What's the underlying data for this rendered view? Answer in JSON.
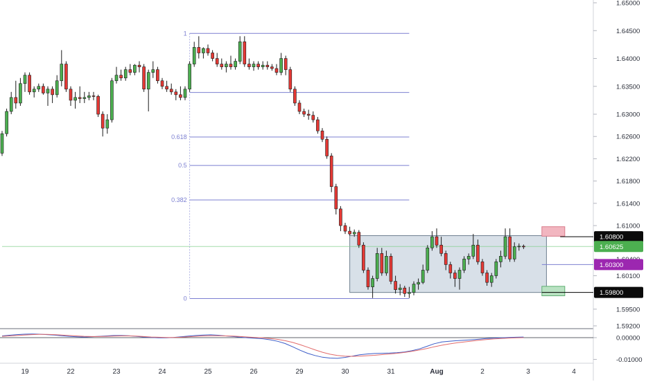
{
  "chart_data": {
    "type": "candlestick",
    "price_axis": {
      "ticks": [
        "1.65000",
        "1.64500",
        "1.64000",
        "1.63500",
        "1.63000",
        "1.62600",
        "1.62200",
        "1.61800",
        "1.61400",
        "1.61000",
        "1.60400",
        "1.60100",
        "1.59500",
        "1.59200"
      ],
      "tick_values": [
        1.65,
        1.645,
        1.64,
        1.635,
        1.63,
        1.626,
        1.622,
        1.618,
        1.614,
        1.61,
        1.604,
        1.601,
        1.595,
        1.592
      ],
      "ylim": [
        1.5915,
        1.6505
      ]
    },
    "date_axis": {
      "labels": [
        "19",
        "22",
        "23",
        "24",
        "25",
        "26",
        "29",
        "30",
        "31",
        "Aug",
        "2",
        "3",
        "4"
      ],
      "label_bars": [
        5,
        15,
        25,
        35,
        45,
        55,
        65,
        75,
        85,
        95,
        105,
        115,
        125
      ]
    },
    "price_labels": [
      {
        "text": "1.60800",
        "value": 1.608,
        "style": "dark"
      },
      {
        "text": "1.60625",
        "value": 1.60625,
        "style": "green"
      },
      {
        "text": "1.60300",
        "value": 1.603,
        "style": "purple"
      },
      {
        "text": "1.59800",
        "value": 1.598,
        "style": "dark"
      }
    ],
    "fibonacci": {
      "levels": [
        {
          "label": "1",
          "value": 1.6445
        },
        {
          "label": "",
          "value": 1.6339
        },
        {
          "label": "0.618",
          "value": 1.6259
        },
        {
          "label": "0.5",
          "value": 1.6208
        },
        {
          "label": "0.382",
          "value": 1.6146
        },
        {
          "label": "0",
          "value": 1.5969
        }
      ],
      "start_bar": 41,
      "end_bar": 89
    },
    "range_box": {
      "top": 1.6082,
      "bottom": 1.598,
      "start_bar": 76,
      "end_bar": 119
    },
    "stop_box": {
      "top": 1.6098,
      "bottom": 1.6081,
      "start_bar": 118,
      "end_bar": 123
    },
    "target_box": {
      "top": 1.5991,
      "bottom": 1.5974,
      "start_bar": 118,
      "end_bar": 123
    },
    "horizontal_lines": [
      {
        "value": 1.608,
        "from_bar": 122,
        "color": "#000000"
      },
      {
        "value": 1.603,
        "from_bar": 118,
        "color": "#7b7fd1"
      },
      {
        "value": 1.598,
        "from_bar": 118,
        "color": "#000000"
      },
      {
        "value": 1.60625,
        "from_bar": 0,
        "color": "#7ed08a"
      }
    ],
    "candles_ohlc": [
      [
        1.623,
        1.627,
        1.6225,
        1.6265
      ],
      [
        1.6265,
        1.631,
        1.626,
        1.6305
      ],
      [
        1.6305,
        1.634,
        1.63,
        1.633
      ],
      [
        1.633,
        1.636,
        1.631,
        1.632
      ],
      [
        1.632,
        1.6365,
        1.6315,
        1.6355
      ],
      [
        1.6355,
        1.6375,
        1.634,
        1.637
      ],
      [
        1.637,
        1.6375,
        1.6335,
        1.634
      ],
      [
        1.634,
        1.635,
        1.633,
        1.6345
      ],
      [
        1.6345,
        1.6355,
        1.634,
        1.635
      ],
      [
        1.635,
        1.6355,
        1.6335,
        1.6338
      ],
      [
        1.6338,
        1.635,
        1.6315,
        1.6345
      ],
      [
        1.6345,
        1.635,
        1.632,
        1.6335
      ],
      [
        1.6335,
        1.637,
        1.633,
        1.636
      ],
      [
        1.636,
        1.6415,
        1.635,
        1.639
      ],
      [
        1.639,
        1.6395,
        1.634,
        1.6345
      ],
      [
        1.6345,
        1.635,
        1.6315,
        1.6325
      ],
      [
        1.6325,
        1.634,
        1.631,
        1.633
      ],
      [
        1.633,
        1.635,
        1.632,
        1.6328
      ],
      [
        1.6328,
        1.634,
        1.632,
        1.633
      ],
      [
        1.633,
        1.634,
        1.6325,
        1.6333
      ],
      [
        1.6333,
        1.634,
        1.6325,
        1.6332
      ],
      [
        1.6332,
        1.6335,
        1.6295,
        1.63
      ],
      [
        1.63,
        1.6305,
        1.626,
        1.6275
      ],
      [
        1.6275,
        1.63,
        1.6265,
        1.629
      ],
      [
        1.629,
        1.6365,
        1.6285,
        1.636
      ],
      [
        1.636,
        1.6385,
        1.6355,
        1.637
      ],
      [
        1.637,
        1.638,
        1.636,
        1.6365
      ],
      [
        1.6365,
        1.6385,
        1.636,
        1.638
      ],
      [
        1.638,
        1.639,
        1.637,
        1.6375
      ],
      [
        1.6375,
        1.639,
        1.637,
        1.6388
      ],
      [
        1.6388,
        1.6395,
        1.6375,
        1.6385
      ],
      [
        1.6385,
        1.639,
        1.634,
        1.6345
      ],
      [
        1.6345,
        1.638,
        1.6305,
        1.6375
      ],
      [
        1.6375,
        1.6395,
        1.6365,
        1.638
      ],
      [
        1.638,
        1.6385,
        1.6355,
        1.636
      ],
      [
        1.636,
        1.6365,
        1.6345,
        1.635
      ],
      [
        1.635,
        1.636,
        1.634,
        1.6345
      ],
      [
        1.6345,
        1.6355,
        1.6335,
        1.634
      ],
      [
        1.634,
        1.6345,
        1.6325,
        1.6335
      ],
      [
        1.6335,
        1.635,
        1.6325,
        1.633
      ],
      [
        1.633,
        1.635,
        1.6325,
        1.6345
      ],
      [
        1.6345,
        1.6395,
        1.634,
        1.639
      ],
      [
        1.639,
        1.643,
        1.6385,
        1.642
      ],
      [
        1.642,
        1.644,
        1.64,
        1.641
      ],
      [
        1.641,
        1.642,
        1.64,
        1.6418
      ],
      [
        1.6418,
        1.6425,
        1.6405,
        1.641
      ],
      [
        1.641,
        1.6415,
        1.6395,
        1.64
      ],
      [
        1.64,
        1.641,
        1.6385,
        1.639
      ],
      [
        1.639,
        1.64,
        1.638,
        1.6385
      ],
      [
        1.6385,
        1.6395,
        1.6375,
        1.639
      ],
      [
        1.639,
        1.6405,
        1.638,
        1.6385
      ],
      [
        1.6385,
        1.64,
        1.638,
        1.6395
      ],
      [
        1.6395,
        1.644,
        1.639,
        1.643
      ],
      [
        1.643,
        1.644,
        1.6385,
        1.639
      ],
      [
        1.639,
        1.64,
        1.638,
        1.6385
      ],
      [
        1.6385,
        1.6395,
        1.6378,
        1.639
      ],
      [
        1.639,
        1.6395,
        1.638,
        1.6385
      ],
      [
        1.6385,
        1.6395,
        1.638,
        1.6388
      ],
      [
        1.6388,
        1.6395,
        1.638,
        1.6385
      ],
      [
        1.6385,
        1.639,
        1.6378,
        1.6382
      ],
      [
        1.6382,
        1.639,
        1.637,
        1.6375
      ],
      [
        1.6375,
        1.641,
        1.637,
        1.64
      ],
      [
        1.64,
        1.6405,
        1.637,
        1.638
      ],
      [
        1.638,
        1.6385,
        1.634,
        1.6345
      ],
      [
        1.6345,
        1.635,
        1.6315,
        1.632
      ],
      [
        1.632,
        1.6325,
        1.63,
        1.6305
      ],
      [
        1.6305,
        1.631,
        1.6295,
        1.63
      ],
      [
        1.63,
        1.6308,
        1.629,
        1.6298
      ],
      [
        1.6298,
        1.6305,
        1.6285,
        1.629
      ],
      [
        1.629,
        1.6295,
        1.6265,
        1.627
      ],
      [
        1.627,
        1.6275,
        1.625,
        1.6255
      ],
      [
        1.6255,
        1.626,
        1.622,
        1.6225
      ],
      [
        1.6225,
        1.623,
        1.616,
        1.617
      ],
      [
        1.617,
        1.6175,
        1.612,
        1.613
      ],
      [
        1.613,
        1.6135,
        1.609,
        1.61
      ],
      [
        1.61,
        1.6105,
        1.6085,
        1.609
      ],
      [
        1.609,
        1.6098,
        1.6082,
        1.6085
      ],
      [
        1.6085,
        1.6093,
        1.608,
        1.6088
      ],
      [
        1.6088,
        1.6092,
        1.606,
        1.6065
      ],
      [
        1.6065,
        1.607,
        1.6015,
        1.602
      ],
      [
        1.602,
        1.6025,
        1.5985,
        1.599
      ],
      [
        1.599,
        1.601,
        1.597,
        1.6005
      ],
      [
        1.6005,
        1.606,
        1.6,
        1.605
      ],
      [
        1.605,
        1.606,
        1.601,
        1.6015
      ],
      [
        1.6015,
        1.6055,
        1.601,
        1.6045
      ],
      [
        1.6045,
        1.605,
        1.5995,
        1.6
      ],
      [
        1.6,
        1.601,
        1.5978,
        1.5985
      ],
      [
        1.5985,
        1.5995,
        1.5975,
        1.5988
      ],
      [
        1.5988,
        1.5992,
        1.5972,
        1.5978
      ],
      [
        1.5978,
        1.599,
        1.597,
        1.598
      ],
      [
        1.598,
        1.6,
        1.5975,
        1.5995
      ],
      [
        1.5995,
        1.6005,
        1.5985,
        1.5998
      ],
      [
        1.5998,
        1.603,
        1.5995,
        1.602
      ],
      [
        1.602,
        1.6065,
        1.6015,
        1.606
      ],
      [
        1.606,
        1.609,
        1.6055,
        1.608
      ],
      [
        1.608,
        1.6095,
        1.606,
        1.6065
      ],
      [
        1.6065,
        1.608,
        1.6045,
        1.605
      ],
      [
        1.605,
        1.6055,
        1.602,
        1.603
      ],
      [
        1.603,
        1.6035,
        1.6005,
        1.6015
      ],
      [
        1.6015,
        1.602,
        1.599,
        1.6005
      ],
      [
        1.6005,
        1.6025,
        1.5985,
        1.602
      ],
      [
        1.602,
        1.6045,
        1.6015,
        1.604
      ],
      [
        1.604,
        1.605,
        1.603,
        1.6045
      ],
      [
        1.6045,
        1.6085,
        1.604,
        1.6065
      ],
      [
        1.6065,
        1.6075,
        1.603,
        1.6035
      ],
      [
        1.6035,
        1.604,
        1.601,
        1.6015
      ],
      [
        1.6015,
        1.602,
        1.5992,
        1.5998
      ],
      [
        1.5998,
        1.6015,
        1.599,
        1.601
      ],
      [
        1.601,
        1.604,
        1.6005,
        1.6035
      ],
      [
        1.6035,
        1.6055,
        1.6025,
        1.6045
      ],
      [
        1.6045,
        1.6095,
        1.604,
        1.608
      ],
      [
        1.608,
        1.6095,
        1.6035,
        1.604
      ],
      [
        1.604,
        1.607,
        1.6035,
        1.6062
      ],
      [
        1.6062,
        1.6068,
        1.6055,
        1.6063
      ],
      [
        1.6063,
        1.6066,
        1.6058,
        1.60625
      ]
    ],
    "oscillator": {
      "axis_labels": [
        "0.00000",
        "-0.01000"
      ],
      "axis_values": [
        0.0,
        -0.01
      ],
      "ylim": [
        -0.0105,
        0.0035
      ],
      "series": [
        {
          "color": "#3a5bc7",
          "values": [
            0.0008,
            0.0011,
            0.0014,
            0.0016,
            0.0017,
            0.0016,
            0.0014,
            0.0012,
            0.0009,
            0.0006,
            0.0004,
            0.0003,
            0.0004,
            0.0006,
            0.0008,
            0.001,
            0.001,
            0.0009,
            0.0006,
            0.0003,
            0.0001,
            -0.0001,
            -0.0001,
            0.0001,
            0.0004,
            0.0007,
            0.001,
            0.0012,
            0.0013,
            0.0011,
            0.0008,
            0.0005,
            0.0002,
            -0.0001,
            -0.0003,
            -0.0005,
            -0.001,
            -0.0017,
            -0.0027,
            -0.0042,
            -0.0058,
            -0.0072,
            -0.0082,
            -0.009,
            -0.0094,
            -0.0095,
            -0.0091,
            -0.0085,
            -0.0079,
            -0.0075,
            -0.0073,
            -0.0072,
            -0.0071,
            -0.0069,
            -0.0066,
            -0.006,
            -0.0052,
            -0.004,
            -0.0028,
            -0.002,
            -0.0017,
            -0.0014,
            -0.0012,
            -0.001,
            -0.0007,
            -0.0004,
            -0.0002,
            -0.0001,
            0.0001,
            0.0002,
            0.0003
          ]
        },
        {
          "color": "#e26a6a",
          "values": [
            0.0006,
            0.0008,
            0.001,
            0.0012,
            0.0014,
            0.0015,
            0.0015,
            0.0014,
            0.0012,
            0.001,
            0.0008,
            0.0006,
            0.0005,
            0.0005,
            0.0006,
            0.0007,
            0.0008,
            0.0008,
            0.0007,
            0.0005,
            0.0003,
            0.0002,
            0.0001,
            0.0001,
            0.0002,
            0.0004,
            0.0006,
            0.0008,
            0.0009,
            0.0009,
            0.0008,
            0.0007,
            0.0005,
            0.0003,
            0.0001,
            -0.0001,
            -0.0004,
            -0.0008,
            -0.0014,
            -0.0022,
            -0.0032,
            -0.0044,
            -0.0056,
            -0.0067,
            -0.0076,
            -0.0082,
            -0.0085,
            -0.0086,
            -0.0085,
            -0.0083,
            -0.0081,
            -0.0078,
            -0.0075,
            -0.0072,
            -0.0068,
            -0.0063,
            -0.0057,
            -0.005,
            -0.0042,
            -0.0035,
            -0.0029,
            -0.0024,
            -0.002,
            -0.0016,
            -0.0012,
            -0.0009,
            -0.0006,
            -0.0004,
            -0.0002,
            -0.0001,
            0.0
          ]
        }
      ]
    },
    "colors": {
      "up": "#4caf50",
      "down": "#e53935",
      "wick": "#1a1a1a",
      "fib": "#7b7fd1",
      "fib_label": "#7b7fd1",
      "range_fill": "#b8c6d6",
      "range_stroke": "#6f7f90",
      "stop_fill": "#f2b6c0",
      "target_fill": "#b9e2c2"
    }
  }
}
